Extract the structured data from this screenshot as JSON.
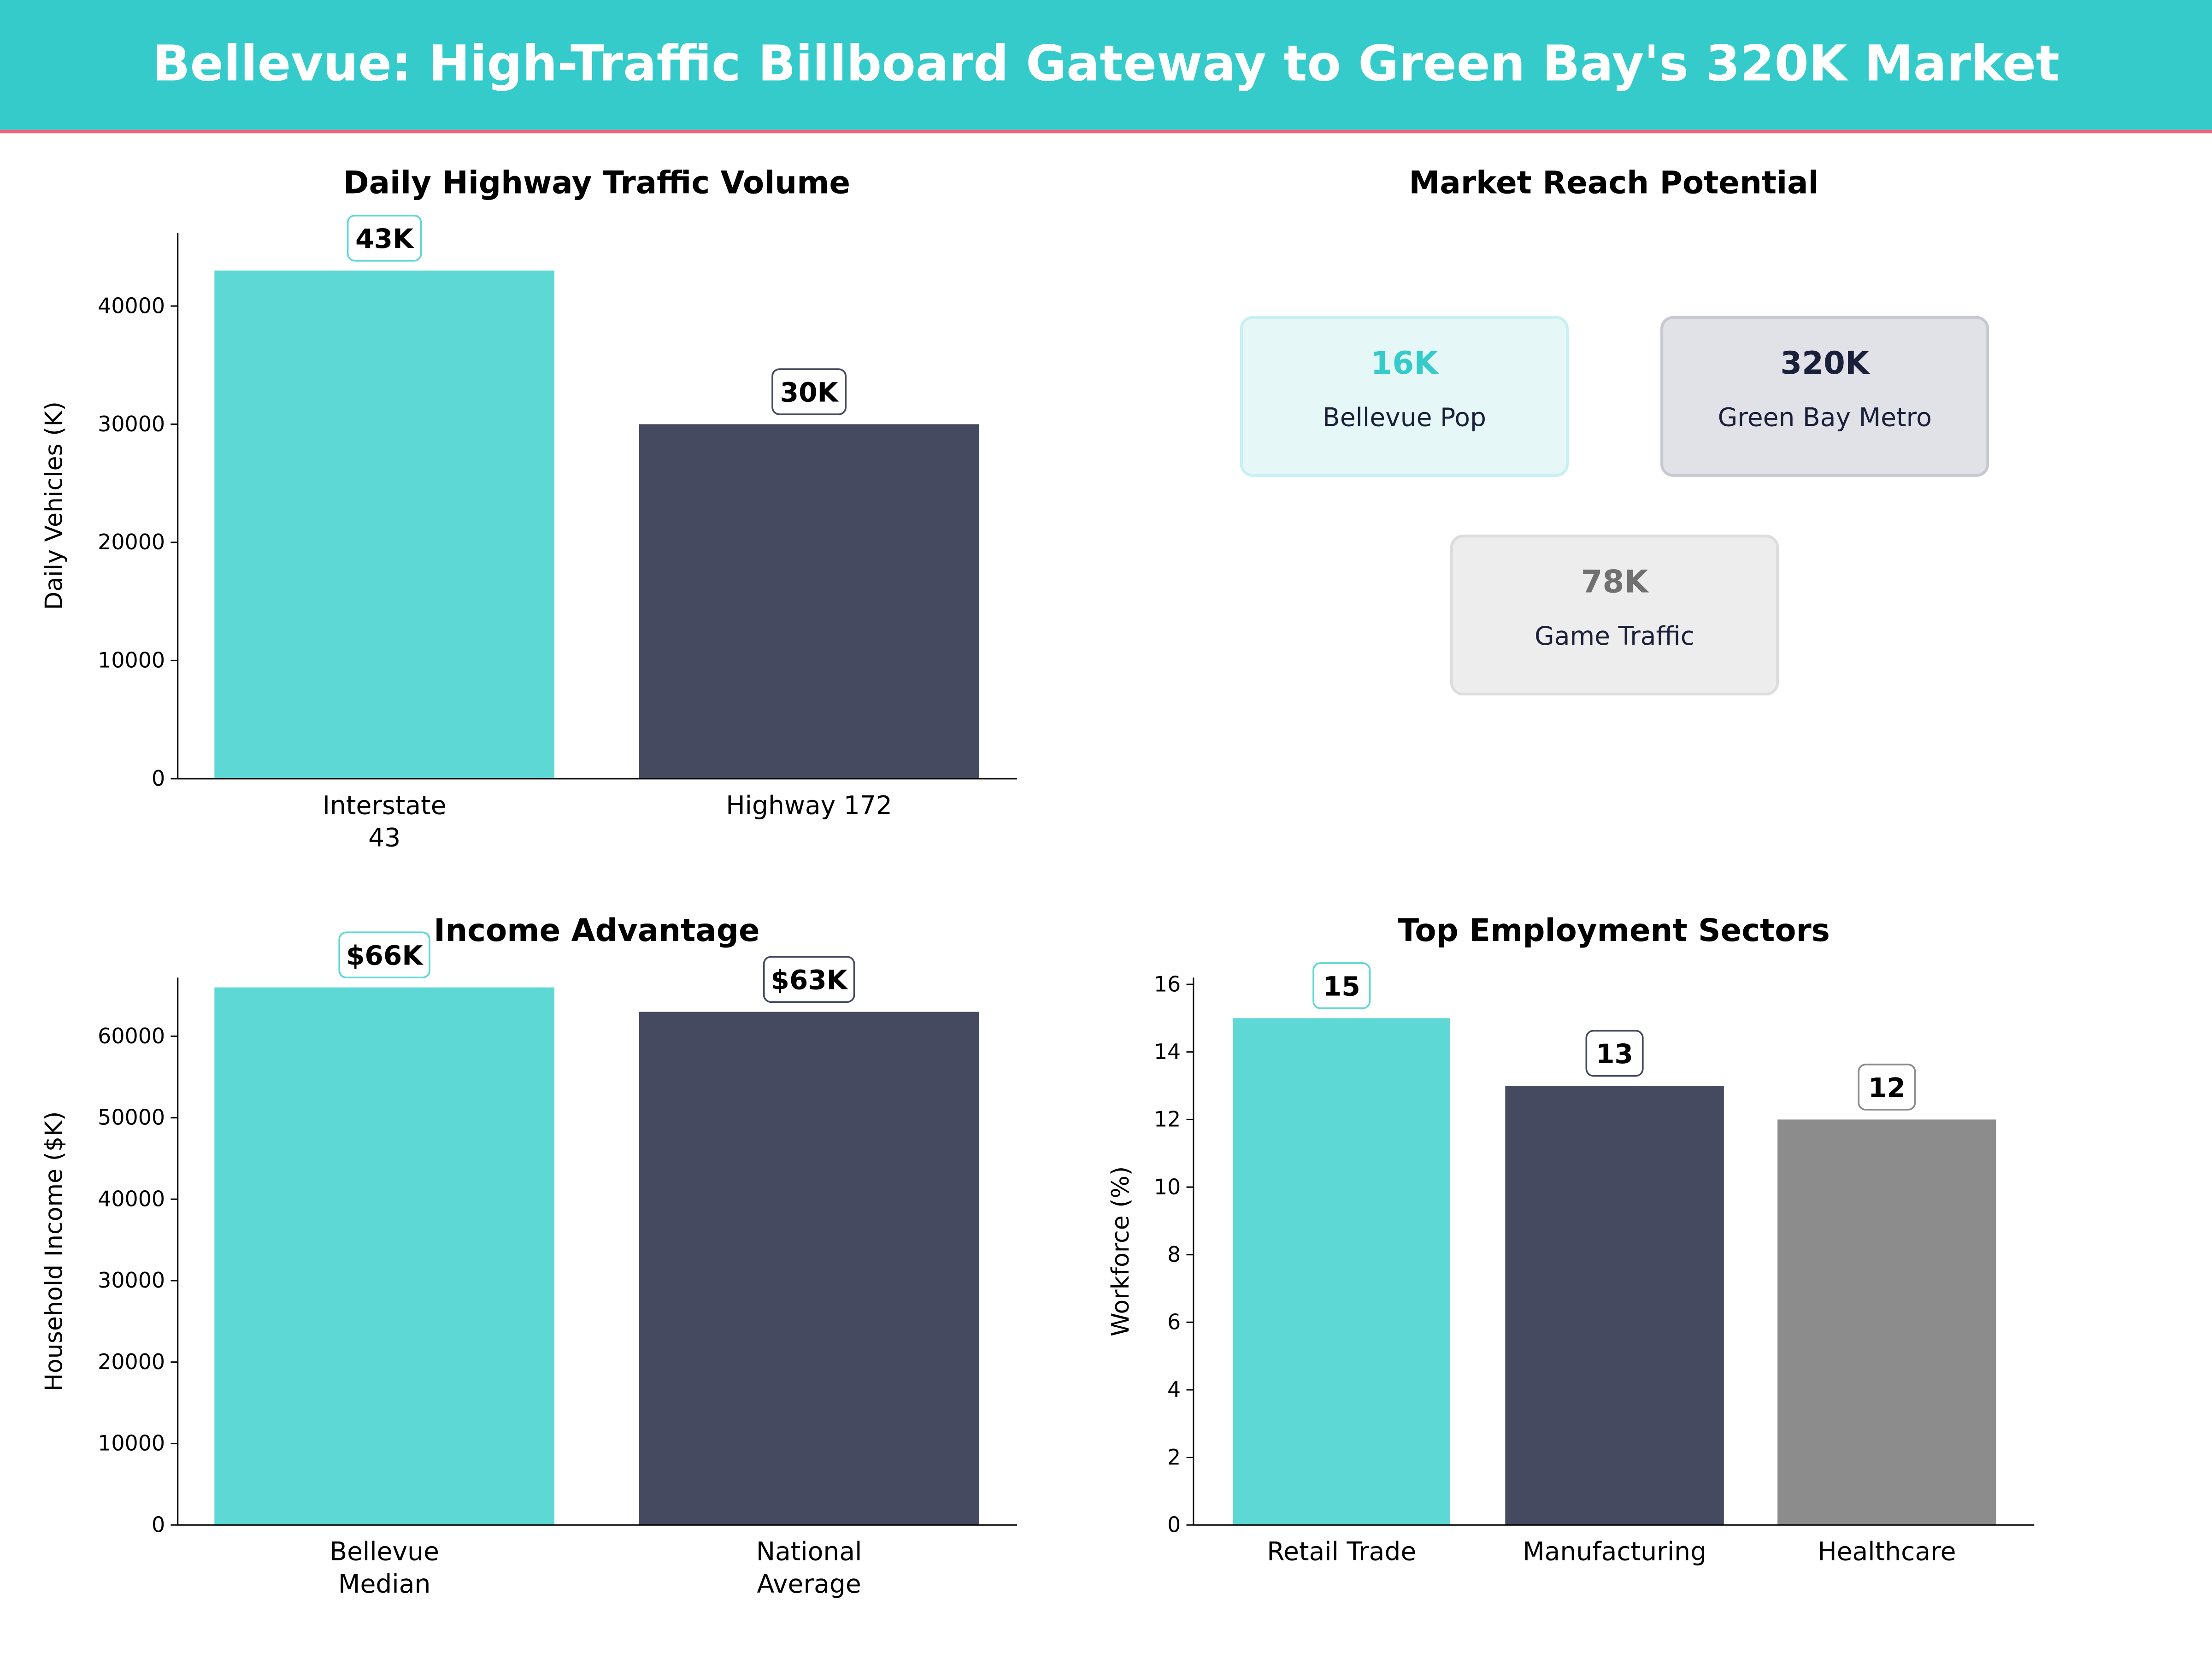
{
  "title": "Bellevue: High-Traffic Billboard Gateway to Green Bay's 320K Market",
  "colors": {
    "header": "#36CBCB",
    "accent_line": "#F0607A",
    "teal": "#5DD8D5",
    "navy": "#464A60",
    "gray": "#8C8C8C"
  },
  "chart_data": [
    {
      "type": "bar",
      "title": "Daily Highway Traffic Volume",
      "ylabel": "Daily Vehicles (K)",
      "xlabel": "",
      "categories": [
        [
          "Interstate",
          "43"
        ],
        [
          "Highway 172"
        ]
      ],
      "values": [
        43000,
        30000
      ],
      "data_labels": [
        "43K",
        "30K"
      ],
      "yticks": [
        0,
        10000,
        20000,
        30000,
        40000
      ],
      "ylim": [
        0,
        46200
      ],
      "bar_colors": [
        "#5DD8D5",
        "#464A60"
      ]
    },
    {
      "type": "table",
      "title": "Market Reach Potential",
      "cards": [
        {
          "value": "16K",
          "label": "Bellevue Pop",
          "value_color": "#36CBCB",
          "bg": "#E5F7F7",
          "border": "#C9F0F0"
        },
        {
          "value": "320K",
          "label": "Green Bay Metro",
          "value_color": "#1A1F3A",
          "bg": "#E1E2E7",
          "border": "#C8C9D0"
        },
        {
          "value": "78K",
          "label": "Game Traffic",
          "value_color": "#707070",
          "bg": "#EDEDED",
          "border": "#DDDDDD"
        }
      ]
    },
    {
      "type": "bar",
      "title": "Income Advantage",
      "ylabel": "Household Income ($K)",
      "xlabel": "",
      "categories": [
        [
          "Bellevue",
          "Median"
        ],
        [
          "National",
          "Average"
        ]
      ],
      "values": [
        66000,
        63000
      ],
      "data_labels": [
        "$66K",
        "$63K"
      ],
      "yticks": [
        0,
        10000,
        20000,
        30000,
        40000,
        50000,
        60000
      ],
      "ylim": [
        0,
        67200
      ],
      "bar_colors": [
        "#5DD8D5",
        "#464A60"
      ]
    },
    {
      "type": "bar",
      "title": "Top Employment Sectors",
      "ylabel": "Workforce (%)",
      "xlabel": "",
      "categories": [
        [
          "Retail Trade"
        ],
        [
          "Manufacturing"
        ],
        [
          "Healthcare"
        ]
      ],
      "values": [
        15,
        13,
        12
      ],
      "data_labels": [
        "15",
        "13",
        "12"
      ],
      "yticks": [
        0,
        2,
        4,
        6,
        8,
        10,
        12,
        14,
        16
      ],
      "ylim": [
        0,
        16.2
      ],
      "bar_colors": [
        "#5DD8D5",
        "#464A60",
        "#8C8C8C"
      ]
    }
  ]
}
